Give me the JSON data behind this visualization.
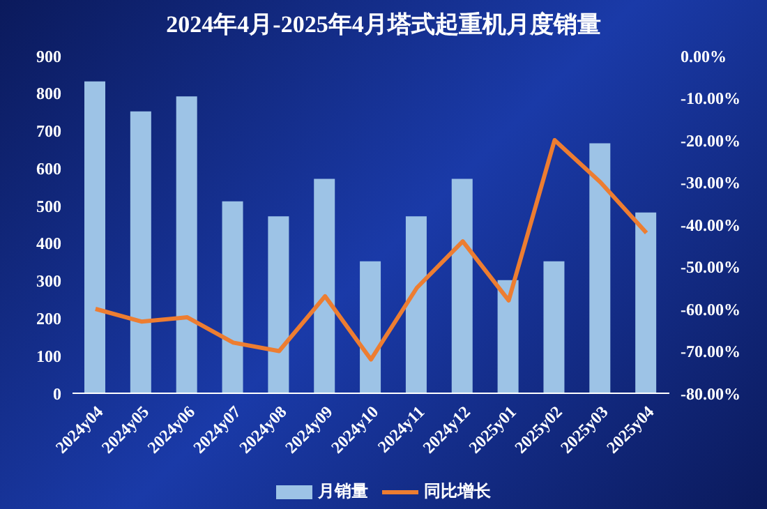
{
  "chart_data": {
    "type": "bar",
    "title": "2024年4月-2025年4月塔式起重机月度销量",
    "categories": [
      "2024y04",
      "2024y05",
      "2024y06",
      "2024y07",
      "2024y08",
      "2024y09",
      "2024y10",
      "2024y11",
      "2024y12",
      "2025y01",
      "2025y02",
      "2025y03",
      "2025y04"
    ],
    "series": [
      {
        "name": "月销量",
        "color": "#9dc3e6",
        "values": [
          830,
          750,
          790,
          510,
          470,
          570,
          350,
          470,
          570,
          300,
          350,
          665,
          480
        ]
      },
      {
        "name": "同比增长",
        "type": "line",
        "axis": "y2",
        "color": "#ed7d31",
        "values": [
          -60,
          -63,
          -62,
          -68,
          -70,
          -57,
          -72,
          -55,
          -44,
          -58,
          -20,
          -30,
          -42
        ]
      }
    ],
    "ylim": [
      0,
      900
    ],
    "yticks": [
      0,
      100,
      200,
      300,
      400,
      500,
      600,
      700,
      800,
      900
    ],
    "y2lim": [
      -80,
      0
    ],
    "y2ticks": [
      {
        "value": -80,
        "label": "-80.00%"
      },
      {
        "value": -70,
        "label": "-70.00%"
      },
      {
        "value": -60,
        "label": "-60.00%"
      },
      {
        "value": -50,
        "label": "-50.00%"
      },
      {
        "value": -40,
        "label": "-40.00%"
      },
      {
        "value": -30,
        "label": "-30.00%"
      },
      {
        "value": -20,
        "label": "-20.00%"
      },
      {
        "value": -10,
        "label": "-10.00%"
      },
      {
        "value": 0,
        "label": "0.00%"
      }
    ],
    "grid": false,
    "legend": "bottom",
    "marker": "none"
  }
}
